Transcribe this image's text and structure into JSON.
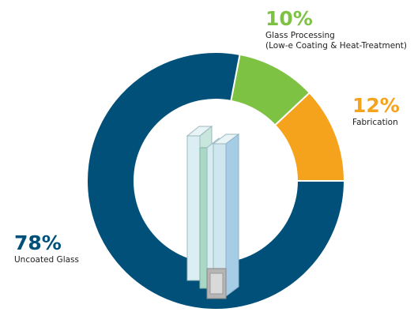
{
  "chart_data": {
    "type": "pie",
    "categories": [
      [
        "Glass Processing",
        "(Low-e Coating & Heat-Treatment)"
      ],
      [
        "Fabrication"
      ],
      [
        "Uncoated Glass"
      ]
    ],
    "values": [
      10,
      12,
      78
    ],
    "value_labels": [
      "10%",
      "12%",
      "78%"
    ],
    "colors": [
      "#7dc242",
      "#f5a21c",
      "#00507a"
    ]
  }
}
